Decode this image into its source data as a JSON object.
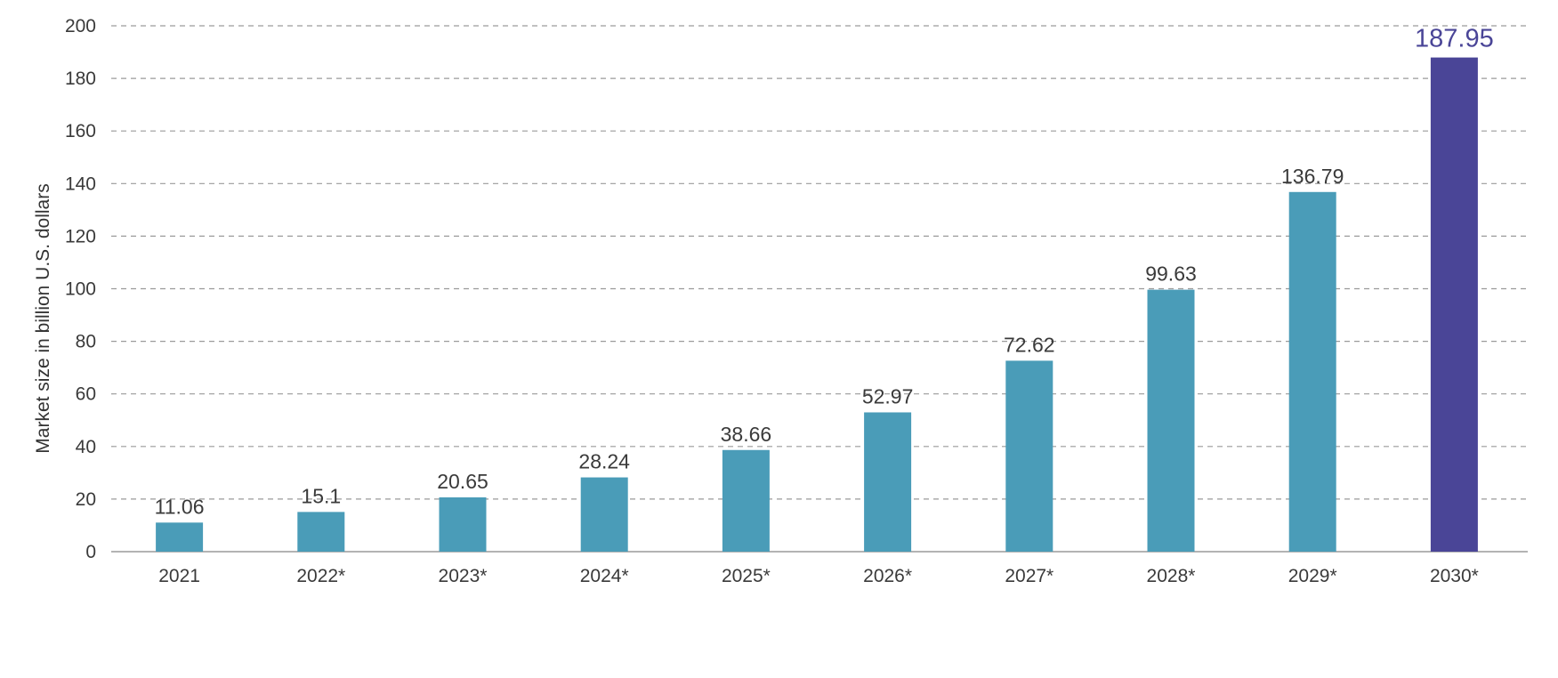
{
  "chart_data": {
    "type": "bar",
    "title": "",
    "xlabel": "",
    "ylabel": "Market size in billion U.S. dollars",
    "ylim": [
      0,
      200
    ],
    "yticks": [
      "0",
      "20",
      "40",
      "60",
      "80",
      "100",
      "120",
      "140",
      "160",
      "180",
      "200"
    ],
    "grid": true,
    "categories": [
      "2021",
      "2022*",
      "2023*",
      "2024*",
      "2025*",
      "2026*",
      "2027*",
      "2028*",
      "2029*",
      "2030*"
    ],
    "values": [
      11.06,
      15.1,
      20.65,
      28.24,
      38.66,
      52.97,
      72.62,
      99.63,
      136.79,
      187.95
    ],
    "value_labels": [
      "11.06",
      "15.1",
      "20.65",
      "28.24",
      "38.66",
      "52.97",
      "72.62",
      "99.63",
      "136.79",
      "187.95"
    ],
    "colors": {
      "bar": "#4a9cb8",
      "highlight_bar": "#4a4597",
      "highlight_label": "#4a4597"
    },
    "highlight_index": 9
  }
}
